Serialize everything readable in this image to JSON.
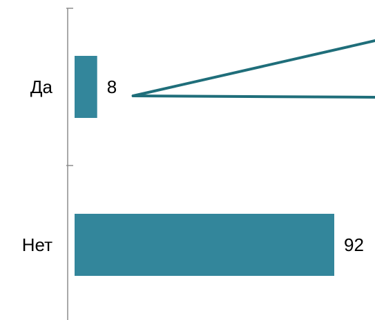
{
  "chart_data": {
    "type": "bar",
    "orientation": "horizontal",
    "categories": [
      "Да",
      "Нет"
    ],
    "values": [
      8,
      92
    ],
    "title": "",
    "xlabel": "",
    "ylabel": "",
    "xlim": [
      0,
      92
    ],
    "grid": false,
    "legend": "none",
    "data_labels": [
      "8",
      "92"
    ],
    "annotation": "callout-lines-from-first-label"
  },
  "colors": {
    "bar": "#33869B",
    "callout": "#1F6E7A",
    "axis": "#8C8C8C",
    "text": "#000000"
  }
}
